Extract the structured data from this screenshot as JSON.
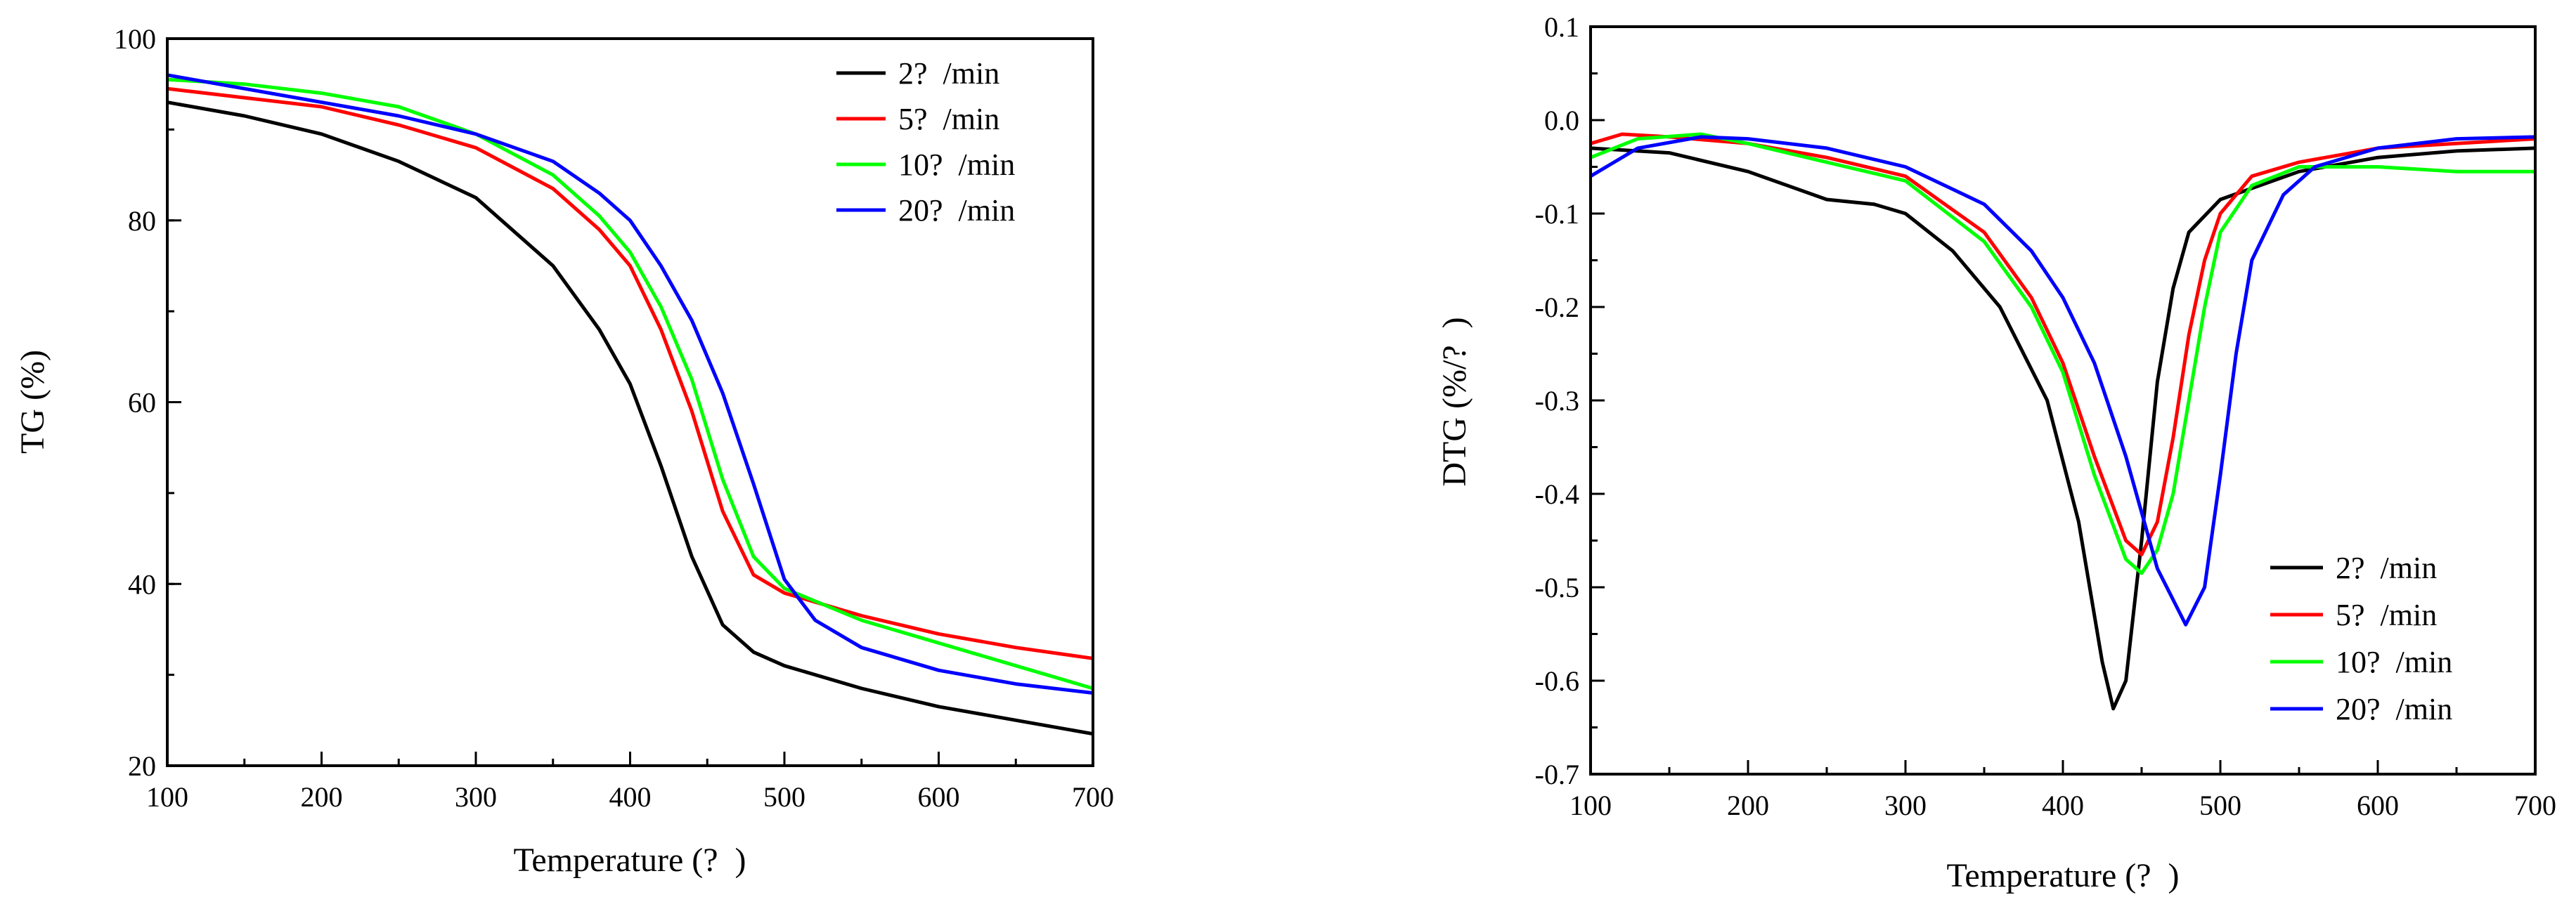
{
  "chart_data": [
    {
      "id": "tg",
      "type": "line",
      "title": "",
      "xlabel": "Temperature (?  )",
      "ylabel": "TG (%)",
      "xlim": [
        100,
        700
      ],
      "ylim": [
        20,
        100
      ],
      "x_ticks": [
        100,
        200,
        300,
        400,
        500,
        600,
        700
      ],
      "x_tick_labels": [
        "100",
        "200",
        "300",
        "400",
        "500",
        "600",
        "700"
      ],
      "y_ticks": [
        20,
        40,
        60,
        80,
        100
      ],
      "y_tick_labels": [
        "20",
        "40",
        "60",
        "80",
        "100"
      ],
      "x_minor_step": 50,
      "y_minor_step": 10,
      "grid": false,
      "legend_position": "top-right",
      "series": [
        {
          "name": "2?  /min",
          "color": "#000000",
          "points": [
            [
              100,
              93
            ],
            [
              150,
              91.5
            ],
            [
              200,
              89.5
            ],
            [
              250,
              86.5
            ],
            [
              300,
              82.5
            ],
            [
              350,
              75
            ],
            [
              380,
              68
            ],
            [
              400,
              62
            ],
            [
              420,
              53
            ],
            [
              440,
              43
            ],
            [
              460,
              35.5
            ],
            [
              480,
              32.5
            ],
            [
              500,
              31
            ],
            [
              550,
              28.5
            ],
            [
              600,
              26.5
            ],
            [
              650,
              25
            ],
            [
              700,
              23.5
            ]
          ]
        },
        {
          "name": "5?  /min",
          "color": "#ff0000",
          "points": [
            [
              100,
              94.5
            ],
            [
              150,
              93.5
            ],
            [
              200,
              92.5
            ],
            [
              250,
              90.5
            ],
            [
              300,
              88
            ],
            [
              350,
              83.5
            ],
            [
              380,
              79
            ],
            [
              400,
              75
            ],
            [
              420,
              68
            ],
            [
              440,
              59
            ],
            [
              460,
              48
            ],
            [
              480,
              41
            ],
            [
              500,
              39
            ],
            [
              550,
              36.5
            ],
            [
              600,
              34.5
            ],
            [
              650,
              33
            ],
            [
              700,
              31.8
            ]
          ]
        },
        {
          "name": "10?  /min",
          "color": "#00ff00",
          "points": [
            [
              100,
              95.5
            ],
            [
              150,
              95
            ],
            [
              200,
              94
            ],
            [
              250,
              92.5
            ],
            [
              300,
              89.5
            ],
            [
              350,
              85
            ],
            [
              380,
              80.5
            ],
            [
              400,
              76.5
            ],
            [
              420,
              70.5
            ],
            [
              440,
              62.5
            ],
            [
              460,
              51.5
            ],
            [
              480,
              43
            ],
            [
              500,
              39.5
            ],
            [
              550,
              36
            ],
            [
              600,
              33.5
            ],
            [
              650,
              31
            ],
            [
              700,
              28.5
            ]
          ]
        },
        {
          "name": "20?  /min",
          "color": "#0000ff",
          "points": [
            [
              100,
              96
            ],
            [
              150,
              94.5
            ],
            [
              200,
              93
            ],
            [
              250,
              91.5
            ],
            [
              300,
              89.5
            ],
            [
              350,
              86.5
            ],
            [
              380,
              83
            ],
            [
              400,
              80
            ],
            [
              420,
              75
            ],
            [
              440,
              69
            ],
            [
              460,
              61
            ],
            [
              480,
              51
            ],
            [
              500,
              40.5
            ],
            [
              520,
              36
            ],
            [
              550,
              33
            ],
            [
              600,
              30.5
            ],
            [
              650,
              29
            ],
            [
              700,
              28
            ]
          ]
        }
      ]
    },
    {
      "id": "dtg",
      "type": "line",
      "title": "",
      "xlabel": "Temperature (?  )",
      "ylabel": "DTG (%/?  )",
      "xlim": [
        100,
        700
      ],
      "ylim": [
        -0.7,
        0.1
      ],
      "x_ticks": [
        100,
        200,
        300,
        400,
        500,
        600,
        700
      ],
      "x_tick_labels": [
        "100",
        "200",
        "300",
        "400",
        "500",
        "600",
        "700"
      ],
      "y_ticks": [
        0.1,
        0.0,
        -0.1,
        -0.2,
        -0.3,
        -0.4,
        -0.5,
        -0.6,
        -0.7
      ],
      "y_tick_labels": [
        "0.1",
        "0.0",
        "-0.1",
        "-0.2",
        "-0.3",
        "-0.4",
        "-0.5",
        "-0.6",
        "-0.7"
      ],
      "x_minor_step": 50,
      "y_minor_step": 0.05,
      "grid": false,
      "legend_position": "bottom-right",
      "series": [
        {
          "name": "2?  /min",
          "color": "#000000",
          "points": [
            [
              100,
              -0.03
            ],
            [
              150,
              -0.035
            ],
            [
              200,
              -0.055
            ],
            [
              250,
              -0.085
            ],
            [
              280,
              -0.09
            ],
            [
              300,
              -0.1
            ],
            [
              330,
              -0.14
            ],
            [
              360,
              -0.2
            ],
            [
              390,
              -0.3
            ],
            [
              410,
              -0.43
            ],
            [
              425,
              -0.58
            ],
            [
              432,
              -0.63
            ],
            [
              440,
              -0.6
            ],
            [
              450,
              -0.45
            ],
            [
              460,
              -0.28
            ],
            [
              470,
              -0.18
            ],
            [
              480,
              -0.12
            ],
            [
              500,
              -0.085
            ],
            [
              550,
              -0.055
            ],
            [
              600,
              -0.04
            ],
            [
              650,
              -0.033
            ],
            [
              700,
              -0.03
            ]
          ]
        },
        {
          "name": "5?  /min",
          "color": "#ff0000",
          "points": [
            [
              100,
              -0.025
            ],
            [
              120,
              -0.015
            ],
            [
              150,
              -0.018
            ],
            [
              200,
              -0.025
            ],
            [
              250,
              -0.04
            ],
            [
              300,
              -0.06
            ],
            [
              350,
              -0.12
            ],
            [
              380,
              -0.19
            ],
            [
              400,
              -0.26
            ],
            [
              420,
              -0.36
            ],
            [
              440,
              -0.45
            ],
            [
              450,
              -0.465
            ],
            [
              460,
              -0.43
            ],
            [
              470,
              -0.34
            ],
            [
              480,
              -0.23
            ],
            [
              490,
              -0.15
            ],
            [
              500,
              -0.1
            ],
            [
              520,
              -0.06
            ],
            [
              550,
              -0.045
            ],
            [
              600,
              -0.03
            ],
            [
              650,
              -0.025
            ],
            [
              700,
              -0.02
            ]
          ]
        },
        {
          "name": "10?  /min",
          "color": "#00ff00",
          "points": [
            [
              100,
              -0.04
            ],
            [
              130,
              -0.02
            ],
            [
              170,
              -0.015
            ],
            [
              200,
              -0.025
            ],
            [
              250,
              -0.045
            ],
            [
              300,
              -0.065
            ],
            [
              350,
              -0.13
            ],
            [
              380,
              -0.2
            ],
            [
              400,
              -0.27
            ],
            [
              420,
              -0.38
            ],
            [
              440,
              -0.47
            ],
            [
              450,
              -0.485
            ],
            [
              460,
              -0.46
            ],
            [
              470,
              -0.4
            ],
            [
              480,
              -0.3
            ],
            [
              490,
              -0.2
            ],
            [
              500,
              -0.12
            ],
            [
              520,
              -0.07
            ],
            [
              550,
              -0.05
            ],
            [
              600,
              -0.05
            ],
            [
              650,
              -0.055
            ],
            [
              700,
              -0.055
            ]
          ]
        },
        {
          "name": "20?  /min",
          "color": "#0000ff",
          "points": [
            [
              100,
              -0.06
            ],
            [
              130,
              -0.03
            ],
            [
              170,
              -0.018
            ],
            [
              200,
              -0.02
            ],
            [
              250,
              -0.03
            ],
            [
              300,
              -0.05
            ],
            [
              350,
              -0.09
            ],
            [
              380,
              -0.14
            ],
            [
              400,
              -0.19
            ],
            [
              420,
              -0.26
            ],
            [
              440,
              -0.36
            ],
            [
              460,
              -0.48
            ],
            [
              478,
              -0.54
            ],
            [
              490,
              -0.5
            ],
            [
              500,
              -0.38
            ],
            [
              510,
              -0.25
            ],
            [
              520,
              -0.15
            ],
            [
              540,
              -0.08
            ],
            [
              560,
              -0.05
            ],
            [
              600,
              -0.03
            ],
            [
              650,
              -0.02
            ],
            [
              700,
              -0.018
            ]
          ]
        }
      ]
    }
  ]
}
